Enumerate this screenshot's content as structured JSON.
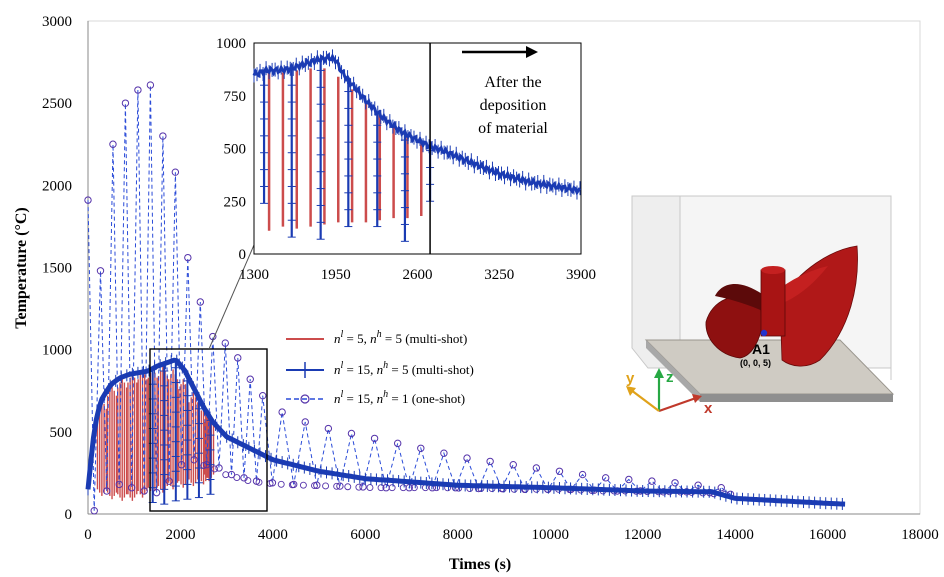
{
  "chart_data": [
    {
      "type": "line",
      "ylabel": "Temperature (°C)",
      "xlabel": "Times (s)",
      "xlim": [
        0,
        18000
      ],
      "ylim": [
        0,
        3000
      ],
      "xticks": [
        "0",
        "2000",
        "4000",
        "6000",
        "8000",
        "10000",
        "12000",
        "14000",
        "16000",
        "18000"
      ],
      "yticks": [
        "0",
        "500",
        "1000",
        "1500",
        "2000",
        "2500",
        "3000"
      ],
      "grid": false,
      "legend_position": "center",
      "series": [
        {
          "name": "n^l = 5, n^h = 5 (multi-shot)",
          "legend_parts": [
            "n",
            "l",
            " = 5, ",
            "n",
            "h",
            " = 5 (multi-shot)"
          ],
          "color": "#cc4c4c",
          "style": "vertical lines",
          "x": [
            300,
            520,
            740,
            960,
            1180,
            1400,
            1620,
            1840,
            2060,
            2280,
            2500,
            2620
          ],
          "ymin": [
            110,
            90,
            80,
            80,
            100,
            120,
            130,
            150,
            160,
            170,
            180,
            200
          ],
          "ymax": [
            700,
            780,
            830,
            860,
            880,
            890,
            900,
            880,
            820,
            740,
            660,
            620
          ]
        },
        {
          "name": "n^l = 15, n^h = 5 (multi-shot)",
          "legend_parts": [
            "n",
            "l",
            " = 15, ",
            "n",
            "h",
            " = 5 (multi-shot)"
          ],
          "color": "#1a3bb3",
          "style": "line with plus markers and dips",
          "envelope_x": [
            0,
            100,
            200,
            300,
            500,
            700,
            900,
            1100,
            1300,
            1500,
            1700,
            1900,
            2100,
            2300,
            2500,
            2700,
            3000,
            3500,
            4000,
            5000,
            6000,
            8000,
            10000,
            12000,
            13500,
            14000,
            15000,
            16000,
            16400
          ],
          "envelope_y": [
            150,
            430,
            610,
            700,
            790,
            830,
            850,
            860,
            870,
            900,
            920,
            940,
            870,
            760,
            650,
            560,
            470,
            400,
            330,
            260,
            215,
            175,
            160,
            140,
            135,
            95,
            80,
            65,
            60
          ],
          "dip_x": [
            1400,
            1650,
            1900,
            2150,
            2400,
            2650
          ],
          "dip_y": [
            70,
            60,
            80,
            90,
            100,
            120
          ]
        },
        {
          "name": "n^l = 15, n^h = 1 (one-shot)",
          "legend_parts": [
            "n",
            "l",
            " = 15, ",
            "n",
            "h",
            " = 1 (one-shot)"
          ],
          "color": "#2a4bd8",
          "marker_color": "#5533aa",
          "style": "dashed line with circle markers",
          "peak_x": [
            0,
            270,
            540,
            810,
            1080,
            1350,
            1620,
            1890,
            2160,
            2430,
            2700,
            2970,
            3240,
            3510,
            3780,
            4200,
            4700,
            5200,
            5700,
            6200,
            6700,
            7200,
            7700,
            8200,
            8700,
            9200,
            9700,
            10200,
            10700,
            11200,
            11700,
            12200,
            12700,
            13200,
            13700
          ],
          "peak_y": [
            1910,
            1480,
            2250,
            2500,
            2580,
            2610,
            2300,
            2080,
            1560,
            1290,
            1080,
            1040,
            950,
            820,
            720,
            620,
            560,
            520,
            490,
            460,
            430,
            400,
            370,
            340,
            320,
            300,
            280,
            260,
            240,
            220,
            210,
            200,
            190,
            175,
            160
          ],
          "low_y": [
            20,
            140,
            180,
            160,
            140,
            130,
            200,
            300,
            330,
            300,
            280,
            240,
            220,
            200,
            190,
            180,
            175,
            170,
            165,
            160,
            160,
            160,
            160,
            155,
            155,
            150,
            150,
            150,
            145,
            140,
            140,
            135,
            135,
            130,
            120
          ]
        }
      ],
      "annotations": [
        "A1",
        "(0, 0, 5)",
        "x",
        "y",
        "z"
      ]
    },
    {
      "type": "line",
      "title": "",
      "xlim": [
        1300,
        3900
      ],
      "ylim": [
        0,
        1000
      ],
      "xticks": [
        "1300",
        "1950",
        "2600",
        "3250",
        "3900"
      ],
      "yticks": [
        "0",
        "250",
        "500",
        "750",
        "1000"
      ],
      "vline_x": 2700,
      "annotation": [
        "After the",
        "deposition",
        "of material"
      ],
      "series": [
        {
          "name": "n^l = 5, n^h = 5 (multi-shot)",
          "color": "#cc4c4c",
          "x": [
            1420,
            1530,
            1640,
            1750,
            1860,
            1970,
            2080,
            2190,
            2300,
            2410,
            2520,
            2630
          ],
          "ymin": [
            110,
            130,
            120,
            130,
            140,
            150,
            150,
            150,
            160,
            170,
            170,
            180
          ],
          "ymax": [
            860,
            860,
            870,
            880,
            880,
            840,
            780,
            720,
            660,
            600,
            560,
            520
          ]
        },
        {
          "name": "n^l = 15, n^h = 5 (multi-shot)",
          "color": "#1a3bb3",
          "envelope_x": [
            1300,
            1400,
            1500,
            1600,
            1700,
            1800,
            1900,
            1950,
            2000,
            2100,
            2200,
            2300,
            2400,
            2500,
            2600,
            2700,
            2800,
            3000,
            3250,
            3500,
            3700,
            3900
          ],
          "envelope_y": [
            850,
            870,
            870,
            880,
            900,
            920,
            930,
            920,
            860,
            790,
            720,
            660,
            610,
            570,
            540,
            510,
            490,
            440,
            380,
            340,
            320,
            300
          ],
          "dip_x": [
            1380,
            1600,
            1830,
            2050,
            2280,
            2500,
            2700
          ],
          "dip_y": [
            240,
            80,
            70,
            130,
            130,
            60,
            250
          ]
        }
      ]
    }
  ]
}
